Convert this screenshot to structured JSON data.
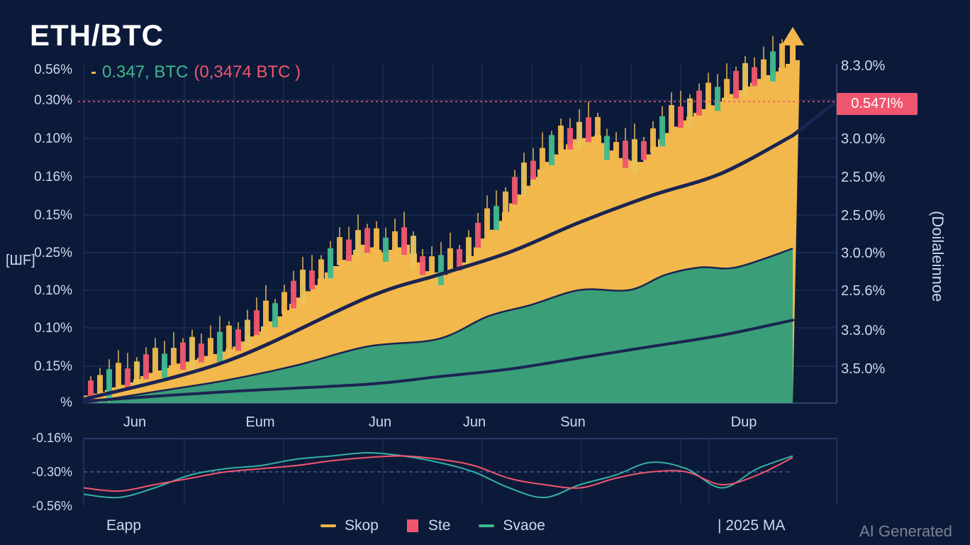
{
  "title": "ETH/BTC",
  "quote": {
    "dash": "-",
    "main": "0.347, BTC",
    "alt": "(0,3474 BTC )"
  },
  "y_label_left": "[ШF]",
  "y_label_right": "(Doilaleinnoe",
  "price_badge": "0.547I%",
  "footer_left": "Eapp",
  "footer_right": "| 2025 MA",
  "watermark": "AI Generated",
  "colors": {
    "background": "#0c1a3a",
    "orange": "#f2b84b",
    "green": "#3a9e78",
    "red": "#f0566e",
    "navy": "#1b2452",
    "teal": "#35b0a2"
  },
  "legend": [
    {
      "label": "Skop",
      "kind": "line",
      "color": "#f2b84b"
    },
    {
      "label": "Ste",
      "kind": "box",
      "color": "#f0566e"
    },
    {
      "label": "Svaoe",
      "kind": "line",
      "color": "#3fb98e"
    }
  ],
  "chart_data": [
    {
      "type": "area",
      "title": "ETH/BTC",
      "grid": true,
      "x_tick_labels": [
        "Jun",
        "Eum",
        "Jun",
        "Jun",
        "Sun",
        "Dup"
      ],
      "y_tick_labels_left": [
        "0.56%",
        "0.30%",
        "0.10%",
        "0.16%",
        "0.15%",
        "0.25%",
        "0.10%",
        "0.10%",
        "0.15%",
        "%"
      ],
      "y_tick_labels_right": [
        "8.3.0%",
        "3.0.0%",
        "2.5.0%",
        "2.5.0%",
        "3.0.0%",
        "2.5.6%",
        "3.3.0%",
        "3.5.0%"
      ],
      "y_range": [
        0,
        9
      ],
      "reference_line": {
        "y": 8,
        "label": "0.547I%"
      },
      "series": [
        {
          "name": "Skop",
          "kind": "area",
          "color": "#f2b84b",
          "x": [
            0,
            3,
            6,
            9,
            12,
            15,
            18,
            21,
            24,
            27,
            30,
            33,
            36,
            39,
            42,
            45,
            48,
            51,
            54,
            57,
            60,
            63,
            66,
            69,
            72,
            75,
            78,
            81,
            84,
            87,
            90,
            93,
            96,
            99,
            100
          ],
          "y": [
            0.2,
            0.35,
            0.55,
            0.8,
            1.0,
            1.15,
            1.3,
            1.5,
            1.9,
            2.3,
            2.8,
            3.3,
            3.8,
            4.2,
            4.0,
            4.2,
            3.5,
            3.4,
            3.9,
            4.6,
            5.3,
            6.0,
            6.6,
            7.0,
            7.1,
            6.5,
            6.4,
            7.0,
            7.5,
            7.8,
            8.1,
            8.4,
            8.7,
            9.0,
            9.1
          ]
        },
        {
          "name": "Svaoe",
          "kind": "area",
          "color": "#3a9e78",
          "x": [
            0,
            10,
            20,
            30,
            40,
            50,
            57,
            63,
            70,
            77,
            82,
            87,
            92,
            100
          ],
          "y": [
            0,
            0.3,
            0.6,
            1.0,
            1.5,
            1.7,
            2.3,
            2.6,
            3.0,
            3.0,
            3.4,
            3.6,
            3.6,
            4.1
          ]
        },
        {
          "kind": "line",
          "color": "#1b2452",
          "x": [
            0,
            20,
            40,
            50,
            60,
            70,
            80,
            90,
            100
          ],
          "y": [
            0.1,
            1.1,
            2.8,
            3.4,
            4.0,
            4.8,
            5.5,
            6.1,
            7.1
          ]
        },
        {
          "kind": "line",
          "color": "#1b2452",
          "x": [
            0,
            20,
            40,
            50,
            60,
            70,
            80,
            90,
            100
          ],
          "y": [
            0.05,
            0.3,
            0.5,
            0.7,
            0.9,
            1.2,
            1.5,
            1.8,
            2.2
          ]
        }
      ]
    },
    {
      "type": "line",
      "y_tick_labels": [
        "-0.16%",
        "-0.30%",
        "-0.56%"
      ],
      "reference_line": {
        "y": 0
      },
      "series": [
        {
          "kind": "line",
          "color": "#35b0a2",
          "x": [
            0,
            5,
            10,
            15,
            20,
            25,
            30,
            35,
            40,
            45,
            50,
            55,
            60,
            65,
            70,
            75,
            80,
            85,
            90,
            95,
            100
          ],
          "y": [
            -0.7,
            -0.8,
            -0.5,
            -0.1,
            0.1,
            0.2,
            0.4,
            0.5,
            0.6,
            0.5,
            0.3,
            0.0,
            -0.5,
            -0.8,
            -0.4,
            -0.1,
            0.3,
            0.1,
            -0.5,
            0.1,
            0.5
          ]
        },
        {
          "kind": "line",
          "color": "#f0566e",
          "x": [
            0,
            5,
            10,
            15,
            20,
            25,
            30,
            35,
            40,
            45,
            50,
            55,
            60,
            65,
            70,
            75,
            80,
            85,
            90,
            95,
            100
          ],
          "y": [
            -0.5,
            -0.6,
            -0.4,
            -0.2,
            0.0,
            0.1,
            0.2,
            0.35,
            0.45,
            0.5,
            0.4,
            0.2,
            -0.2,
            -0.4,
            -0.5,
            -0.2,
            0.0,
            0.0,
            -0.4,
            -0.1,
            0.45
          ]
        }
      ]
    }
  ]
}
